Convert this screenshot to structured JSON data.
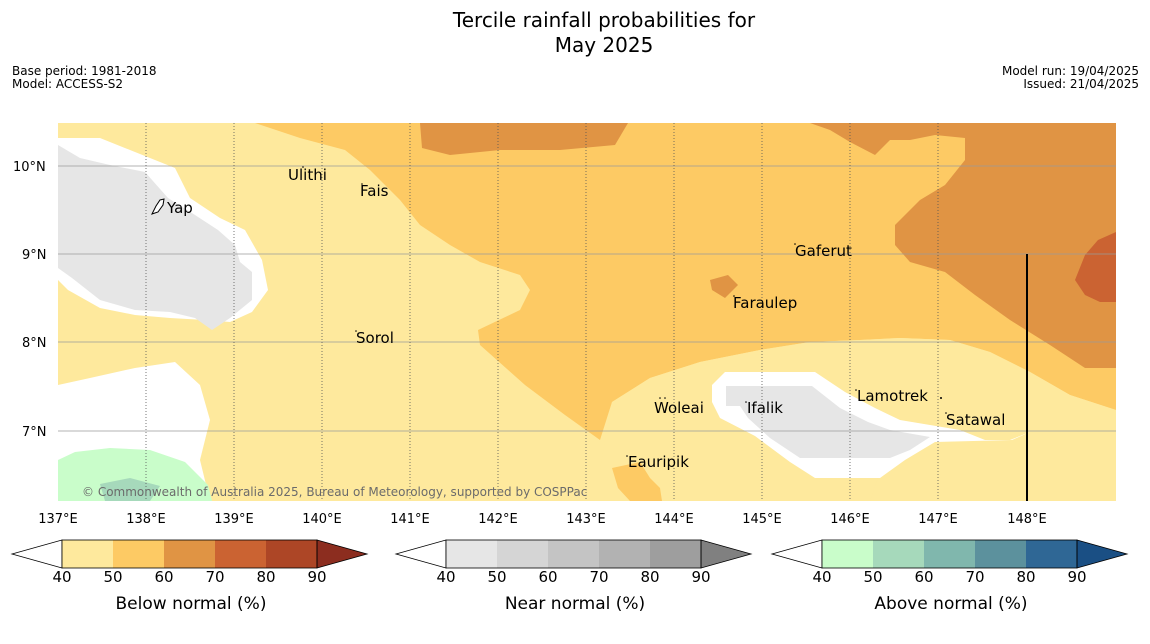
{
  "title_line1": "Tercile rainfall probabilities for",
  "title_line2": "May 2025",
  "base_period": "Base period: 1981-2018",
  "model": "Model: ACCESS-S2",
  "model_run": "Model run: 19/04/2025",
  "issued": "Issued: 21/04/2025",
  "copyright": "© Commonwealth of Australia 2025, Bureau of Meteorology, supported by COSPPac",
  "lat_labels": [
    "10°N",
    "9°N",
    "8°N",
    "7°N"
  ],
  "lon_labels": [
    "137°E",
    "138°E",
    "139°E",
    "140°E",
    "141°E",
    "142°E",
    "143°E",
    "144°E",
    "145°E",
    "146°E",
    "147°E",
    "148°E"
  ],
  "places": [
    "Ulithi",
    "Fais",
    "Yap",
    "Gaferut",
    "Faraulep",
    "Sorol",
    "Lamotrek",
    "Woleai",
    "Ifalik",
    "Satawal",
    "Eauripik"
  ],
  "colorbars": [
    {
      "title": "Below normal (%)",
      "ticks": [
        "40",
        "50",
        "60",
        "70",
        "80",
        "90"
      ],
      "colors": [
        "#fee99d",
        "#fdca64",
        "#e09444",
        "#cb6332",
        "#ad4626",
        "#8c2d1f"
      ]
    },
    {
      "title": "Near normal (%)",
      "ticks": [
        "40",
        "50",
        "60",
        "70",
        "80",
        "90"
      ],
      "colors": [
        "#e6e6e6",
        "#d5d5d5",
        "#c4c4c4",
        "#b2b2b2",
        "#9e9e9e",
        "#808080"
      ]
    },
    {
      "title": "Above normal (%)",
      "ticks": [
        "40",
        "50",
        "60",
        "70",
        "80",
        "90"
      ],
      "colors": [
        "#c9fdca",
        "#a6d9bb",
        "#80b7ad",
        "#5c919d",
        "#2f6795",
        "#1a4f84"
      ]
    }
  ]
}
